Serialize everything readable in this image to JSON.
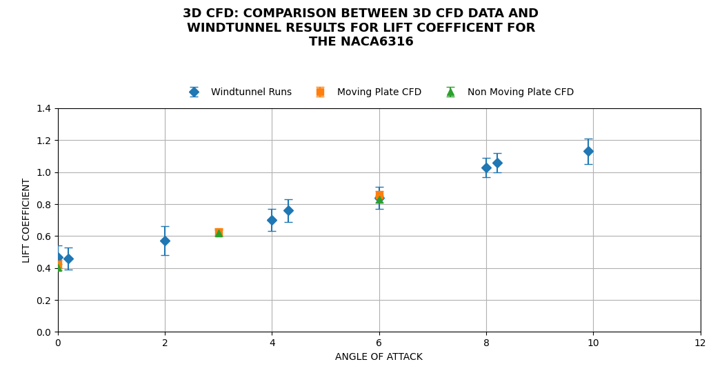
{
  "chart_data": {
    "type": "scatter",
    "title": "3D CFD: COMPARISON BETWEEN 3D CFD DATA AND\nWINDTUNNEL RESULTS FOR LIFT COEFFICENT FOR\nTHE NACA6316",
    "x_label": "ANGLE OF ATTACK",
    "y_label": "LIFT COEFFICIENT",
    "xlim": [
      0,
      12
    ],
    "ylim": [
      0,
      1.4
    ],
    "xticks": [
      0,
      2,
      4,
      6,
      8,
      10,
      12
    ],
    "yticks": [
      {
        "value": 0,
        "label": "0.0"
      },
      0.2,
      0.4,
      0.6,
      0.8,
      {
        "value": 1,
        "label": "1.0"
      },
      1.2,
      1.4
    ],
    "grid": true,
    "legend": "upper center",
    "series": [
      {
        "name": "Windtunnel Runs",
        "marker": "diamond",
        "x": [
          0.0,
          0.2,
          2.0,
          4.0,
          4.3,
          6.0,
          8.0,
          8.2,
          9.9
        ],
        "values": [
          0.47,
          0.46,
          0.57,
          0.7,
          0.76,
          0.84,
          1.03,
          1.06,
          1.13
        ],
        "yerr": [
          0.07,
          0.07,
          0.09,
          0.07,
          0.07,
          0.07,
          0.06,
          0.06,
          0.08
        ]
      },
      {
        "name": "Moving Plate CFD",
        "marker": "square",
        "x": [
          0.0,
          3.0,
          6.0
        ],
        "values": [
          0.425,
          0.625,
          0.855
        ],
        "yerr": [
          0.025,
          0.025,
          0.025
        ]
      },
      {
        "name": "Non Moving Plate CFD",
        "marker": "triangle",
        "x": [
          0.0,
          3.0,
          6.0
        ],
        "values": [
          0.405,
          0.62,
          0.83
        ],
        "yerr": [
          0.02,
          0.02,
          0.02
        ]
      }
    ]
  }
}
